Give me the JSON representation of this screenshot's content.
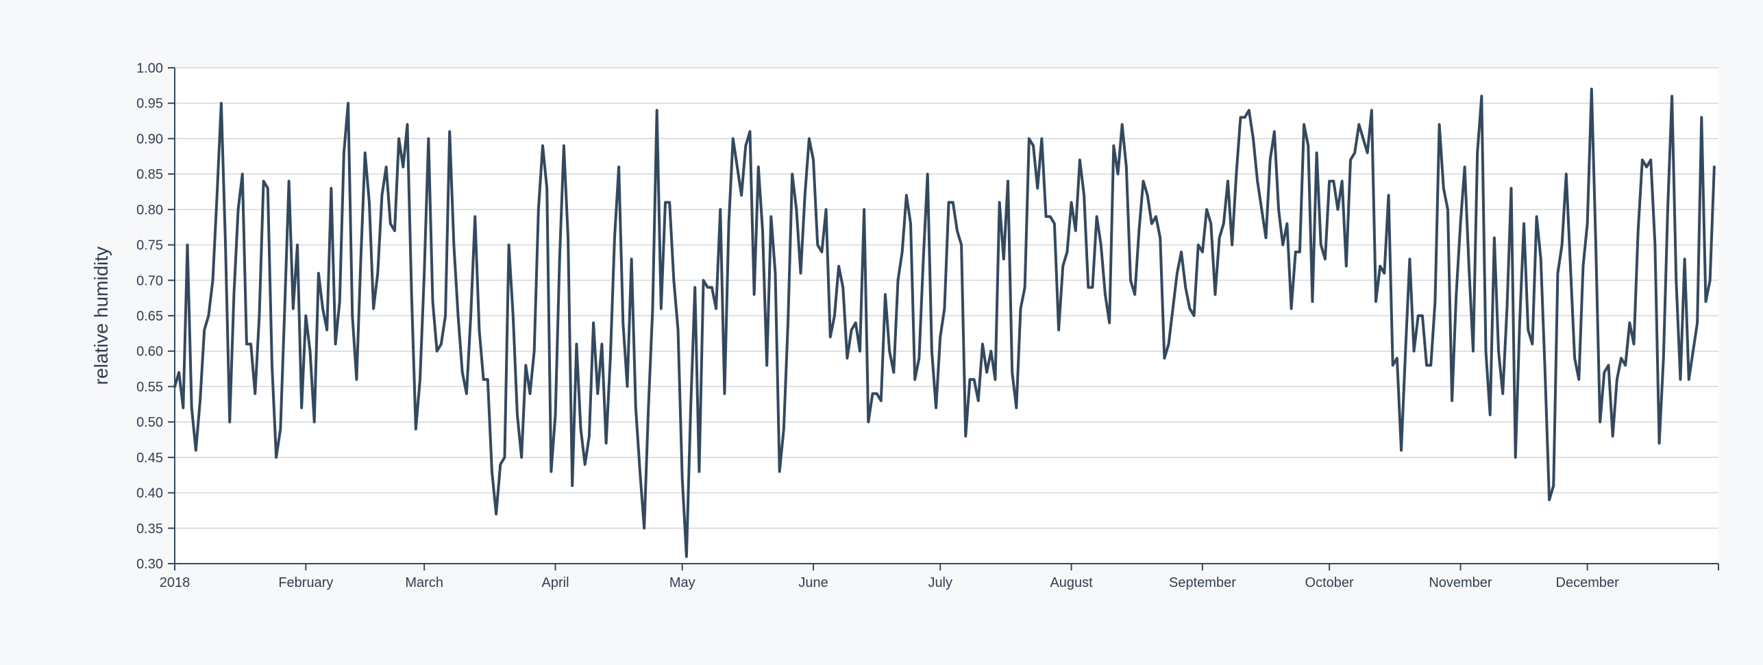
{
  "chart_data": {
    "type": "line",
    "title": "",
    "xlabel": "",
    "ylabel": "relative humidity",
    "ylim": [
      0.3,
      1.0
    ],
    "xlim": [
      "2018-01-01",
      "2019-01-01"
    ],
    "grid": "horizontal",
    "colors": {
      "line": "#34495e",
      "grid": "#d3d6da",
      "axis": "#34495e",
      "plot_bg": "#ffffff",
      "page_bg": "#f7f8fa"
    },
    "y_ticks": [
      "0.30",
      "0.35",
      "0.40",
      "0.45",
      "0.50",
      "0.55",
      "0.60",
      "0.65",
      "0.70",
      "0.75",
      "0.80",
      "0.85",
      "0.90",
      "0.95",
      "1.00"
    ],
    "x_ticks": [
      {
        "label": "2018",
        "date": "2018-01-01"
      },
      {
        "label": "February",
        "date": "2018-02-01"
      },
      {
        "label": "March",
        "date": "2018-03-01"
      },
      {
        "label": "April",
        "date": "2018-04-01"
      },
      {
        "label": "May",
        "date": "2018-05-01"
      },
      {
        "label": "June",
        "date": "2018-06-01"
      },
      {
        "label": "July",
        "date": "2018-07-01"
      },
      {
        "label": "August",
        "date": "2018-08-01"
      },
      {
        "label": "September",
        "date": "2018-09-01"
      },
      {
        "label": "October",
        "date": "2018-10-01"
      },
      {
        "label": "November",
        "date": "2018-11-01"
      },
      {
        "label": "December",
        "date": "2018-12-01"
      }
    ],
    "series": [
      {
        "x_start": "2018-01-01",
        "x_step": "1 day",
        "values": [
          0.55,
          0.57,
          0.52,
          0.75,
          0.52,
          0.46,
          0.53,
          0.63,
          0.65,
          0.7,
          0.82,
          0.95,
          0.75,
          0.5,
          0.68,
          0.8,
          0.85,
          0.61,
          0.61,
          0.54,
          0.65,
          0.84,
          0.83,
          0.58,
          0.45,
          0.49,
          0.66,
          0.84,
          0.66,
          0.75,
          0.52,
          0.65,
          0.6,
          0.5,
          0.71,
          0.66,
          0.63,
          0.83,
          0.61,
          0.67,
          0.88,
          0.95,
          0.65,
          0.56,
          0.73,
          0.88,
          0.81,
          0.66,
          0.71,
          0.82,
          0.86,
          0.78,
          0.77,
          0.9,
          0.86,
          0.92,
          0.68,
          0.49,
          0.56,
          0.71,
          0.9,
          0.67,
          0.6,
          0.61,
          0.65,
          0.91,
          0.75,
          0.65,
          0.57,
          0.54,
          0.65,
          0.79,
          0.63,
          0.56,
          0.56,
          0.43,
          0.37,
          0.44,
          0.45,
          0.75,
          0.65,
          0.51,
          0.45,
          0.58,
          0.54,
          0.6,
          0.8,
          0.89,
          0.83,
          0.43,
          0.51,
          0.73,
          0.89,
          0.76,
          0.41,
          0.61,
          0.49,
          0.44,
          0.48,
          0.64,
          0.54,
          0.61,
          0.47,
          0.59,
          0.76,
          0.86,
          0.64,
          0.55,
          0.73,
          0.52,
          0.43,
          0.35,
          0.52,
          0.66,
          0.94,
          0.66,
          0.81,
          0.81,
          0.7,
          0.63,
          0.42,
          0.31,
          0.52,
          0.69,
          0.43,
          0.7,
          0.69,
          0.69,
          0.66,
          0.8,
          0.54,
          0.78,
          0.9,
          0.86,
          0.82,
          0.89,
          0.91,
          0.68,
          0.86,
          0.77,
          0.58,
          0.79,
          0.71,
          0.43,
          0.49,
          0.64,
          0.85,
          0.8,
          0.71,
          0.82,
          0.9,
          0.87,
          0.75,
          0.74,
          0.8,
          0.62,
          0.65,
          0.72,
          0.69,
          0.59,
          0.63,
          0.64,
          0.6,
          0.8,
          0.5,
          0.54,
          0.54,
          0.53,
          0.68,
          0.6,
          0.57,
          0.7,
          0.74,
          0.82,
          0.78,
          0.56,
          0.59,
          0.73,
          0.85,
          0.6,
          0.52,
          0.62,
          0.66,
          0.81,
          0.81,
          0.77,
          0.75,
          0.48,
          0.56,
          0.56,
          0.53,
          0.61,
          0.57,
          0.6,
          0.56,
          0.81,
          0.73,
          0.84,
          0.57,
          0.52,
          0.66,
          0.69,
          0.9,
          0.89,
          0.83,
          0.9,
          0.79,
          0.79,
          0.78,
          0.63,
          0.72,
          0.74,
          0.81,
          0.77,
          0.87,
          0.82,
          0.69,
          0.69,
          0.79,
          0.75,
          0.68,
          0.64,
          0.89,
          0.85,
          0.92,
          0.86,
          0.7,
          0.68,
          0.77,
          0.84,
          0.82,
          0.78,
          0.79,
          0.76,
          0.59,
          0.61,
          0.66,
          0.71,
          0.74,
          0.69,
          0.66,
          0.65,
          0.75,
          0.74,
          0.8,
          0.78,
          0.68,
          0.76,
          0.78,
          0.84,
          0.75,
          0.85,
          0.93,
          0.93,
          0.94,
          0.9,
          0.84,
          0.8,
          0.76,
          0.87,
          0.91,
          0.8,
          0.75,
          0.78,
          0.66,
          0.74,
          0.74,
          0.92,
          0.89,
          0.67,
          0.88,
          0.75,
          0.73,
          0.84,
          0.84,
          0.8,
          0.84,
          0.72,
          0.87,
          0.88,
          0.92,
          0.9,
          0.88,
          0.94,
          0.67,
          0.72,
          0.71,
          0.82,
          0.58,
          0.59,
          0.46,
          0.6,
          0.73,
          0.6,
          0.65,
          0.65,
          0.58,
          0.58,
          0.67,
          0.92,
          0.83,
          0.8,
          0.53,
          0.68,
          0.78,
          0.86,
          0.72,
          0.6,
          0.88,
          0.96,
          0.6,
          0.51,
          0.76,
          0.6,
          0.54,
          0.66,
          0.83,
          0.45,
          0.64,
          0.78,
          0.63,
          0.61,
          0.79,
          0.73,
          0.57,
          0.39,
          0.41,
          0.71,
          0.75,
          0.85,
          0.72,
          0.59,
          0.56,
          0.72,
          0.78,
          0.97,
          0.75,
          0.5,
          0.57,
          0.58,
          0.48,
          0.56,
          0.59,
          0.58,
          0.64,
          0.61,
          0.77,
          0.87,
          0.86,
          0.87,
          0.75,
          0.47,
          0.59,
          0.8,
          0.96,
          0.7,
          0.56,
          0.73,
          0.56,
          0.6,
          0.64,
          0.93,
          0.67,
          0.7,
          0.86
        ]
      }
    ]
  }
}
